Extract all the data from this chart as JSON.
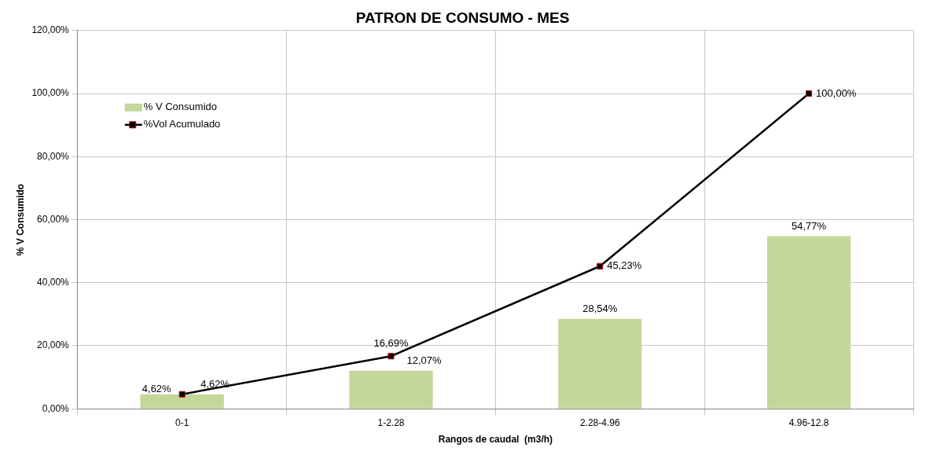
{
  "chart_data": {
    "type": "bar",
    "title": "PATRON DE CONSUMO - MES",
    "xlabel": "Rangos de caudal  (m3/h)",
    "ylabel": "% V Consumido",
    "categories": [
      "0-1",
      "1-2.28",
      "2.28-4.96",
      "4.96-12.8"
    ],
    "series": [
      {
        "name": "% V Consumido",
        "color": "#c4d79b",
        "values": [
          4.62,
          12.07,
          28.54,
          54.77
        ],
        "value_labels": [
          "4,62%",
          "12,07%",
          "28,54%",
          "54,77%"
        ]
      },
      {
        "name": "%Vol Acumulado",
        "type": "line",
        "color": "#000000",
        "marker": "square",
        "values": [
          4.62,
          16.69,
          45.23,
          100
        ],
        "value_labels": [
          "4,62%",
          "16,69%",
          "45,23%",
          "100,00%"
        ]
      }
    ],
    "ylim": [
      0,
      120
    ],
    "yticks": [
      {
        "value": 0,
        "label": "0,00%"
      },
      {
        "value": 20,
        "label": "20,00%"
      },
      {
        "value": 40,
        "label": "40,00%"
      },
      {
        "value": 60,
        "label": "60,00%"
      },
      {
        "value": 80,
        "label": "80,00%"
      },
      {
        "value": 100,
        "label": "100,00%"
      },
      {
        "value": 120,
        "label": "120,00%"
      }
    ],
    "grid": true,
    "legend": "top left"
  }
}
